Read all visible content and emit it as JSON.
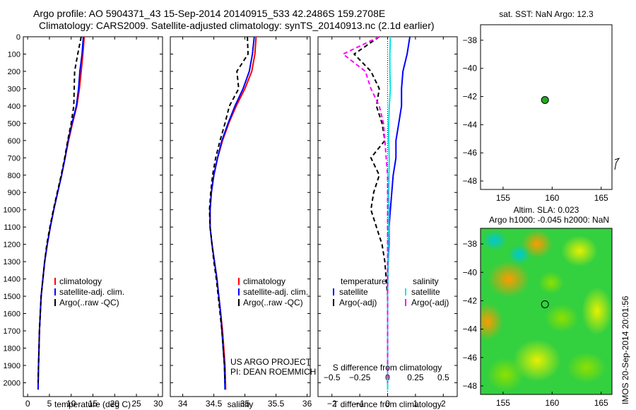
{
  "header": {
    "line1": "Argo profile: AO 5904371_43 15-Sep-2014 20140915_533 42.2486S 159.2708E",
    "line2": "Climatology: CARS2009. Satellite-adjusted climatology: synTS_20140913.nc (2.1d earlier)"
  },
  "stamp": "IMOS 20-Sep-2014 20:01:56",
  "colors": {
    "climatology": "#ff0000",
    "satellite": "#0000ff",
    "argo": "#000000",
    "sal_satellite": "#00e5e5",
    "sal_argo": "#ff00ff",
    "dot": "#22aa22"
  },
  "chart_data": [
    {
      "type": "line",
      "name": "temperature",
      "xlabel": "temperature (deg C)",
      "ylim": [
        2080,
        0
      ],
      "xlim": [
        -1,
        31
      ],
      "xticks": [
        0,
        5,
        10,
        15,
        20,
        25,
        30
      ],
      "yticks": [
        0,
        100,
        200,
        300,
        400,
        500,
        600,
        700,
        800,
        900,
        1000,
        1100,
        1200,
        1300,
        1400,
        1500,
        1600,
        1700,
        1800,
        1900,
        2000
      ],
      "legend": [
        "climatology",
        "satellite-adj. clim.",
        "Argo(..raw -QC)"
      ],
      "legend_position": "center",
      "series": [
        {
          "name": "climatology",
          "color": "#ff0000",
          "dash": "none",
          "x": [
            13.0,
            12.7,
            12.3,
            11.9,
            11.3,
            10.3,
            9.4,
            8.6,
            7.8,
            6.9,
            6.0,
            5.2,
            4.5,
            3.9,
            3.5,
            3.1,
            2.9,
            2.7,
            2.6,
            2.5,
            2.4
          ],
          "y": [
            0,
            100,
            200,
            300,
            400,
            500,
            600,
            700,
            800,
            900,
            1000,
            1100,
            1200,
            1300,
            1400,
            1500,
            1600,
            1700,
            1800,
            1900,
            2040
          ]
        },
        {
          "name": "satellite-adj. clim.",
          "color": "#0000ff",
          "dash": "none",
          "x": [
            12.8,
            12.5,
            12.0,
            11.7,
            11.2,
            10.2,
            9.3,
            8.6,
            7.8,
            6.9,
            6.0,
            5.2,
            4.5,
            3.9,
            3.5,
            3.1,
            2.9,
            2.7,
            2.6,
            2.5,
            2.4
          ],
          "y": [
            0,
            100,
            200,
            300,
            400,
            500,
            600,
            700,
            800,
            900,
            1000,
            1100,
            1200,
            1300,
            1400,
            1500,
            1600,
            1700,
            1800,
            1900,
            2040
          ]
        },
        {
          "name": "Argo(..raw -QC)",
          "color": "#000000",
          "dash": "6,4",
          "x": [
            12.3,
            11.5,
            10.8,
            10.7,
            10.6,
            10.0,
            9.2,
            8.5,
            7.7,
            6.8,
            5.9,
            5.1,
            4.4,
            3.9,
            3.5,
            3.1,
            2.9,
            2.7,
            2.6,
            2.5,
            2.4
          ],
          "y": [
            0,
            100,
            200,
            300,
            400,
            500,
            600,
            700,
            800,
            900,
            1000,
            1100,
            1200,
            1300,
            1400,
            1500,
            1600,
            1700,
            1800,
            1900,
            2000
          ]
        }
      ]
    },
    {
      "type": "line",
      "name": "salinity",
      "xlabel": "salinity",
      "ylim": [
        2080,
        0
      ],
      "xlim": [
        33.8,
        36.05
      ],
      "xticks": [
        34,
        34.5,
        35,
        35.5,
        36
      ],
      "legend": [
        "climatology",
        "satellite-adj. clim.",
        "Argo(..raw -QC)"
      ],
      "legend_position": "center",
      "annotations": [
        "US ARGO PROJECT",
        "PI: DEAN ROEMMICH"
      ],
      "series": [
        {
          "name": "climatology",
          "color": "#ff0000",
          "dash": "none",
          "x": [
            35.18,
            35.16,
            35.11,
            35.0,
            34.86,
            34.74,
            34.64,
            34.56,
            34.5,
            34.46,
            34.44,
            34.44,
            34.47,
            34.51,
            34.55,
            34.58,
            34.61,
            34.64,
            34.66,
            34.68,
            34.69
          ],
          "y": [
            0,
            100,
            200,
            300,
            400,
            500,
            600,
            700,
            800,
            900,
            1000,
            1100,
            1200,
            1300,
            1400,
            1500,
            1600,
            1700,
            1800,
            1900,
            2040
          ]
        },
        {
          "name": "satellite-adj. clim.",
          "color": "#0000ff",
          "dash": "none",
          "x": [
            35.15,
            35.12,
            35.07,
            34.97,
            34.84,
            34.73,
            34.63,
            34.56,
            34.5,
            34.46,
            34.44,
            34.44,
            34.47,
            34.51,
            34.55,
            34.58,
            34.61,
            34.63,
            34.65,
            34.67,
            34.68
          ],
          "y": [
            0,
            100,
            200,
            300,
            400,
            500,
            600,
            700,
            800,
            900,
            1000,
            1100,
            1200,
            1300,
            1400,
            1500,
            1600,
            1700,
            1800,
            1900,
            2040
          ]
        },
        {
          "name": "Argo(..raw -QC)",
          "color": "#000000",
          "dash": "6,4",
          "x": [
            35.04,
            35.05,
            34.87,
            34.9,
            34.75,
            34.68,
            34.6,
            34.53,
            34.48,
            34.45,
            34.43,
            34.44,
            34.47,
            34.5,
            34.54,
            34.57,
            34.6,
            34.63,
            34.65,
            34.67,
            34.68
          ],
          "y": [
            0,
            100,
            200,
            300,
            400,
            500,
            600,
            700,
            800,
            900,
            1000,
            1100,
            1200,
            1300,
            1400,
            1500,
            1600,
            1700,
            1800,
            1900,
            2000
          ]
        }
      ]
    },
    {
      "type": "line",
      "name": "difference",
      "xlabel": "T difference from climatology",
      "xlabel2": "S difference from climatology",
      "ylim": [
        2080,
        0
      ],
      "xlim": [
        -2.5,
        2.5
      ],
      "xticks": [
        -2,
        -1,
        0,
        1,
        2
      ],
      "xticks2": [
        "-0.5",
        "-0.25",
        "0",
        "0.25",
        "0.5"
      ],
      "legend": [
        "temperature",
        "satellite",
        "Argo(-adj)",
        "salinity",
        "satellite",
        "Argo(-adj)"
      ],
      "legend_position": "center",
      "series": [
        {
          "name": "satellite",
          "group": "temperature",
          "color": "#0000ff",
          "dash": "none",
          "x": [
            0.8,
            0.7,
            0.55,
            0.5,
            0.5,
            0.4,
            0.3,
            0.3,
            0.2,
            0.15,
            0.1,
            0.05,
            0.05,
            0.02,
            0.0,
            0.0,
            0.0,
            0.0,
            0.0,
            0.0,
            0.0
          ],
          "y": [
            0,
            100,
            200,
            300,
            400,
            500,
            600,
            700,
            800,
            900,
            1000,
            1100,
            1200,
            1300,
            1400,
            1500,
            1600,
            1700,
            1800,
            1900,
            2040
          ]
        },
        {
          "name": "Argo(-adj)",
          "group": "temperature",
          "color": "#000000",
          "dash": "6,4",
          "x": [
            -0.3,
            -1.2,
            -0.6,
            -0.3,
            -0.4,
            -0.2,
            -0.1,
            -0.6,
            -0.3,
            -0.5,
            -0.6,
            -0.4,
            -0.2,
            -0.1,
            -0.05,
            0.0,
            0.0,
            0.0,
            0.0,
            0.0,
            0.0
          ],
          "y": [
            0,
            100,
            200,
            300,
            400,
            500,
            600,
            700,
            800,
            900,
            1000,
            1100,
            1200,
            1300,
            1400,
            1500,
            1600,
            1700,
            1800,
            1900,
            2000
          ]
        },
        {
          "name": "satellite",
          "group": "salinity",
          "color": "#00e5e5",
          "dash": "none",
          "x": [
            0.1,
            0.08,
            0.08,
            0.1,
            0.06,
            0.04,
            0.04,
            0.06,
            0.05,
            0.04,
            0.05,
            0.04,
            0.03,
            0.02,
            0.01,
            0.0,
            0.0,
            0.0,
            0.0,
            0.0,
            0.0
          ],
          "y": [
            0,
            100,
            200,
            300,
            400,
            500,
            600,
            700,
            800,
            900,
            1000,
            1100,
            1200,
            1300,
            1400,
            1500,
            1600,
            1700,
            1800,
            1900,
            2040
          ]
        },
        {
          "name": "Argo(-adj)",
          "group": "salinity",
          "color": "#ff00ff",
          "dash": "6,4",
          "x": [
            -0.3,
            -1.6,
            -0.8,
            -0.6,
            -0.3,
            -0.15,
            -0.1,
            -0.05,
            0.0,
            0.0,
            0.0,
            0.0,
            0.0,
            0.0,
            0.0,
            0.0,
            0.0,
            0.0,
            0.0,
            0.0,
            0.0
          ],
          "y": [
            0,
            100,
            200,
            300,
            400,
            500,
            600,
            700,
            800,
            900,
            1000,
            1100,
            1200,
            1300,
            1400,
            1500,
            1600,
            1700,
            1800,
            1900,
            2000
          ]
        }
      ]
    },
    {
      "type": "scatter",
      "name": "sst-map",
      "title": "sat. SST: NaN Argo: 12.3",
      "xlim": [
        152.7,
        166.1
      ],
      "ylim": [
        -48.6,
        -36.9
      ],
      "xticks": [
        155,
        160,
        165
      ],
      "yticks": [
        -38,
        -40,
        -42,
        -44,
        -46,
        -48
      ],
      "points": [
        {
          "x": 159.27,
          "y": -42.25
        }
      ]
    },
    {
      "type": "heatmap",
      "name": "sla-map",
      "title_line1": "Altim. SLA: 0.023",
      "title_line2": "Argo h1000: -0.045 h2000: NaN",
      "xlim": [
        152.7,
        166.1
      ],
      "ylim": [
        -48.6,
        -36.9
      ],
      "xticks": [
        155,
        160,
        165
      ],
      "yticks": [
        -38,
        -40,
        -42,
        -44,
        -46,
        -48
      ],
      "points": [
        {
          "x": 159.27,
          "y": -42.25
        }
      ]
    }
  ]
}
